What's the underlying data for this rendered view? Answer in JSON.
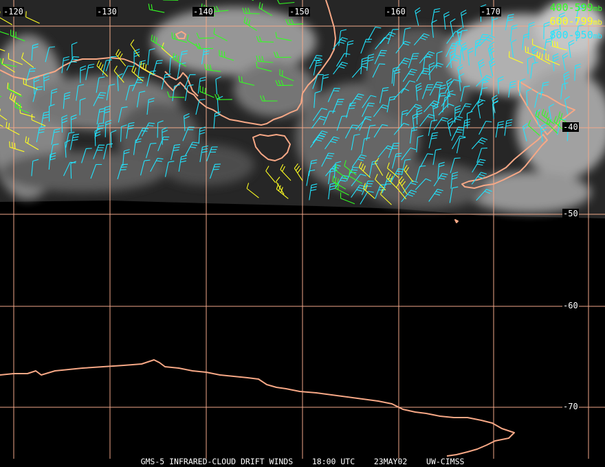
{
  "legend": [
    {
      "label": "400-599",
      "unit": "mb",
      "color": "#33ff22"
    },
    {
      "label": "600-799",
      "unit": "mb",
      "color": "#ffff22"
    },
    {
      "label": "800-950",
      "unit": "mb",
      "color": "#22e5ff"
    }
  ],
  "longitude_labels": [
    "-120",
    "-130",
    "-140",
    "-150",
    "-160",
    "-170"
  ],
  "latitude_labels": [
    "-40",
    "-50",
    "-60",
    "-70"
  ],
  "footer": {
    "product": "GMS-5 INFRARED-CLOUD DRIFT WINDS",
    "time": "18:00 UTC",
    "date": "23MAY02",
    "source": "UW-CIMSS"
  },
  "colors": {
    "background": "#000000",
    "grid": "#f2a98a",
    "coastline": "#f7a886",
    "cloud": "#9a9a9a"
  }
}
